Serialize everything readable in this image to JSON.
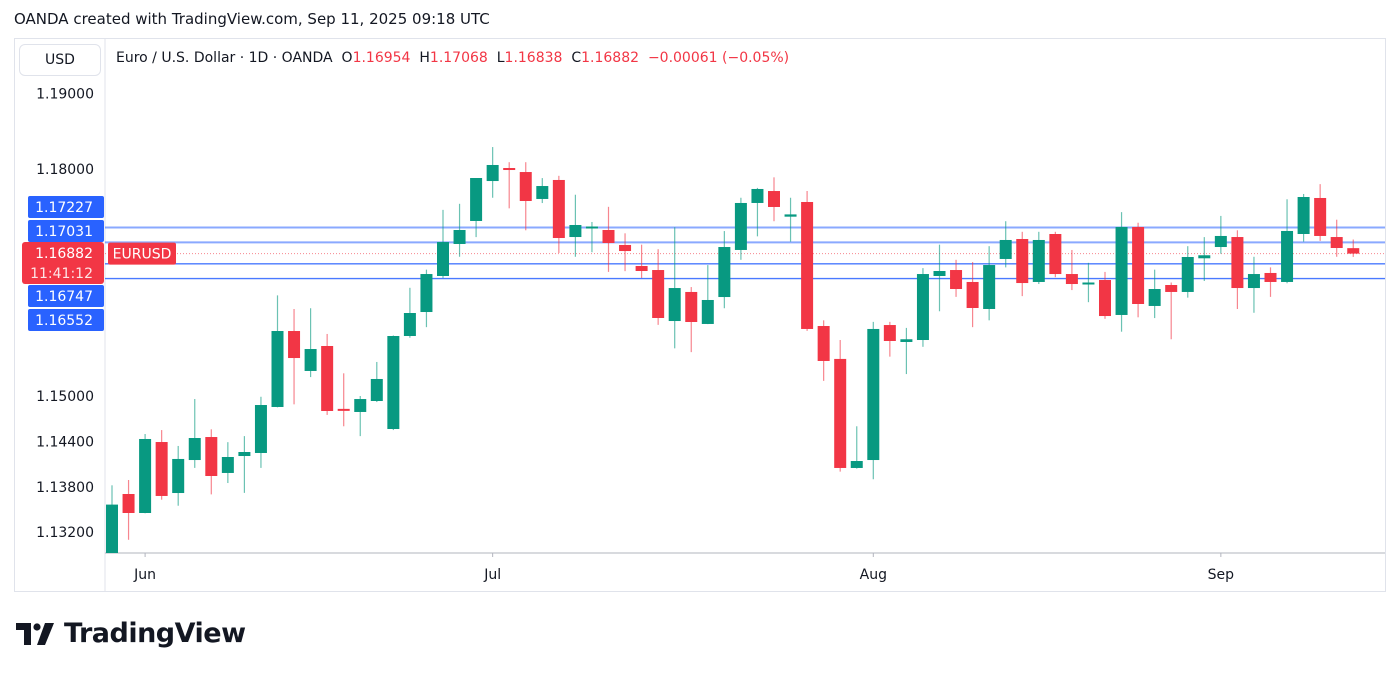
{
  "credit": "OANDA created with TradingView.com, Sep 11, 2025 09:18 UTC",
  "currency_button": "USD",
  "legend": {
    "title": "Euro / U.S. Dollar · 1D · OANDA",
    "o_label": "O",
    "o": "1.16954",
    "h_label": "H",
    "h": "1.17068",
    "l_label": "L",
    "l": "1.16838",
    "c_label": "C",
    "c": "1.16882",
    "change": "−0.00061 (−0.05%)"
  },
  "logo": "TradingView",
  "colors": {
    "up": "#089981",
    "down": "#f23645",
    "level_line": "#2962ff",
    "badge_blue": "#2962ff",
    "badge_red": "#f23645"
  },
  "chart_data": {
    "type": "candlestick",
    "symbol": "EURUSD",
    "interval": "1D",
    "ylim": [
      1.1292,
      1.1977
    ],
    "y_ticks": [
      "1.19000",
      "1.18000",
      "1.15000",
      "1.14400",
      "1.13800",
      "1.13200"
    ],
    "x_ticks": [
      {
        "label": "Jun",
        "index": 2
      },
      {
        "label": "Jul",
        "index": 23
      },
      {
        "label": "Aug",
        "index": 46
      },
      {
        "label": "Sep",
        "index": 67
      }
    ],
    "price_lines": [
      {
        "label": "1.17227",
        "value": 1.17227
      },
      {
        "label": "1.17031",
        "value": 1.17031
      },
      {
        "label": "1.16747",
        "value": 1.16747
      },
      {
        "label": "1.16552",
        "value": 1.16552
      }
    ],
    "last_price": {
      "label": "1.16882",
      "value": 1.16882,
      "countdown": "11:41:12",
      "symbol_badge": "EURUSD"
    },
    "candles": [
      [
        1.1292,
        1.1382,
        1.128,
        1.13565
      ],
      [
        1.13705,
        1.1389,
        1.131,
        1.13454
      ],
      [
        1.13454,
        1.14498,
        1.1345,
        1.14432
      ],
      [
        1.14392,
        1.1455,
        1.1363,
        1.13679
      ],
      [
        1.13718,
        1.1434,
        1.1355,
        1.14168
      ],
      [
        1.14154,
        1.1496,
        1.1405,
        1.14445
      ],
      [
        1.14458,
        1.1456,
        1.137,
        1.13943
      ],
      [
        1.13983,
        1.1439,
        1.1385,
        1.14194
      ],
      [
        1.14207,
        1.1447,
        1.1372,
        1.1426
      ],
      [
        1.14247,
        1.1499,
        1.1405,
        1.14881
      ],
      [
        1.14855,
        1.1633,
        1.1485,
        1.15859
      ],
      [
        1.15859,
        1.1615,
        1.1489,
        1.15502
      ],
      [
        1.15331,
        1.1616,
        1.1525,
        1.15621
      ],
      [
        1.15661,
        1.1582,
        1.1475,
        1.14802
      ],
      [
        1.1483,
        1.153,
        1.146,
        1.1481
      ],
      [
        1.14789,
        1.15,
        1.1447,
        1.1496
      ],
      [
        1.14934,
        1.1545,
        1.1492,
        1.15225
      ],
      [
        1.14564,
        1.158,
        1.1455,
        1.15793
      ],
      [
        1.15793,
        1.1643,
        1.1577,
        1.16097
      ],
      [
        1.1611,
        1.1667,
        1.1591,
        1.16612
      ],
      [
        1.16586,
        1.1746,
        1.1656,
        1.17035
      ],
      [
        1.17009,
        1.1754,
        1.1684,
        1.17194
      ],
      [
        1.17313,
        1.1788,
        1.171,
        1.17881
      ],
      [
        1.17841,
        1.1829,
        1.1762,
        1.18053
      ],
      [
        1.18013,
        1.1809,
        1.1748,
        1.1799
      ],
      [
        1.1796,
        1.1809,
        1.1719,
        1.17577
      ],
      [
        1.17604,
        1.1788,
        1.1755,
        1.17775
      ],
      [
        1.17855,
        1.1791,
        1.1689,
        1.17088
      ],
      [
        1.17101,
        1.1766,
        1.1684,
        1.1726
      ],
      [
        1.1723,
        1.173,
        1.169,
        1.1724
      ],
      [
        1.17194,
        1.175,
        1.1664,
        1.17022
      ],
      [
        1.16996,
        1.1715,
        1.1665,
        1.16916
      ],
      [
        1.16718,
        1.17,
        1.1656,
        1.16652
      ],
      [
        1.16665,
        1.1694,
        1.1594,
        1.16031
      ],
      [
        1.15991,
        1.1723,
        1.1563,
        1.16427
      ],
      [
        1.16375,
        1.1644,
        1.1558,
        1.15978
      ],
      [
        1.15952,
        1.1673,
        1.1595,
        1.16269
      ],
      [
        1.16308,
        1.1718,
        1.1616,
        1.16969
      ],
      [
        1.1693,
        1.1762,
        1.168,
        1.17551
      ],
      [
        1.17551,
        1.1775,
        1.1711,
        1.17736
      ],
      [
        1.17709,
        1.1789,
        1.1731,
        1.17498
      ],
      [
        1.1737,
        1.1762,
        1.1704,
        1.174
      ],
      [
        1.17564,
        1.1771,
        1.1586,
        1.15886
      ],
      [
        1.15925,
        1.16,
        1.152,
        1.15463
      ],
      [
        1.1549,
        1.1574,
        1.14,
        1.14049
      ],
      [
        1.14049,
        1.146,
        1.1404,
        1.14141
      ],
      [
        1.14154,
        1.1598,
        1.139,
        1.15886
      ],
      [
        1.15938,
        1.1598,
        1.1552,
        1.15727
      ],
      [
        1.15714,
        1.159,
        1.1529,
        1.1575
      ],
      [
        1.1574,
        1.1669,
        1.1565,
        1.16612
      ],
      [
        1.16586,
        1.17,
        1.1612,
        1.16652
      ],
      [
        1.16665,
        1.168,
        1.1631,
        1.16414
      ],
      [
        1.16507,
        1.1677,
        1.1591,
        1.16163
      ],
      [
        1.1615,
        1.1698,
        1.16,
        1.16731
      ],
      [
        1.16811,
        1.1731,
        1.167,
        1.17062
      ],
      [
        1.17075,
        1.1717,
        1.1632,
        1.16493
      ],
      [
        1.16507,
        1.1717,
        1.1648,
        1.17062
      ],
      [
        1.17141,
        1.1717,
        1.1657,
        1.16612
      ],
      [
        1.16612,
        1.1693,
        1.164,
        1.1648
      ],
      [
        1.1648,
        1.1676,
        1.1624,
        1.165
      ],
      [
        1.16533,
        1.1664,
        1.1602,
        1.16057
      ],
      [
        1.16071,
        1.1743,
        1.1585,
        1.17234
      ],
      [
        1.17234,
        1.1729,
        1.1604,
        1.16216
      ],
      [
        1.1619,
        1.1667,
        1.1603,
        1.16414
      ],
      [
        1.16467,
        1.165,
        1.1575,
        1.16375
      ],
      [
        1.16375,
        1.1698,
        1.163,
        1.16837
      ],
      [
        1.1682,
        1.171,
        1.1652,
        1.1686
      ],
      [
        1.16969,
        1.1738,
        1.1688,
        1.17115
      ],
      [
        1.17101,
        1.1719,
        1.1615,
        1.16427
      ],
      [
        1.16427,
        1.1684,
        1.161,
        1.16612
      ],
      [
        1.16626,
        1.167,
        1.1631,
        1.16507
      ],
      [
        1.16507,
        1.176,
        1.1649,
        1.17181
      ],
      [
        1.17141,
        1.1767,
        1.1704,
        1.1763
      ],
      [
        1.17617,
        1.178,
        1.1705,
        1.17115
      ],
      [
        1.17101,
        1.1733,
        1.1684,
        1.16956
      ],
      [
        1.16954,
        1.17068,
        1.16838,
        1.16882
      ]
    ]
  }
}
